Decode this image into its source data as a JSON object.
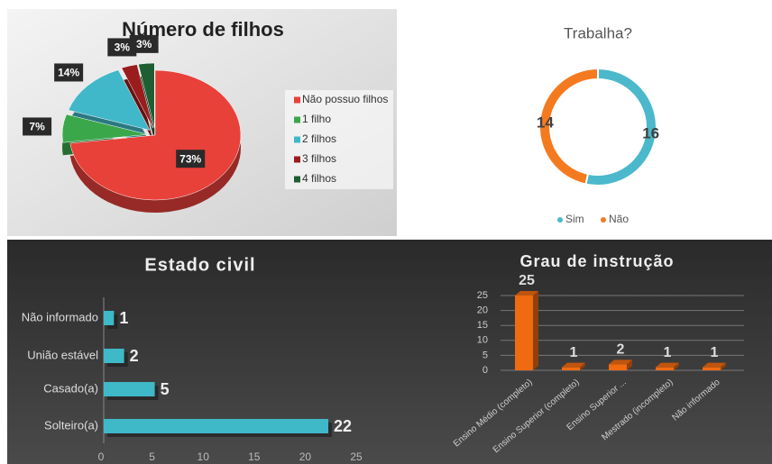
{
  "chart_data": [
    {
      "type": "pie",
      "title": "Número de filhos",
      "categories": [
        "Não possuo filhos",
        "1 filho",
        "2 filhos",
        "3 filhos",
        "4 filhos"
      ],
      "values": [
        73,
        7,
        14,
        3,
        3
      ],
      "value_labels": [
        "73%",
        "7%",
        "14%",
        "3%",
        "3%"
      ],
      "colors": [
        "#e8413a",
        "#3aa84a",
        "#41b8c9",
        "#9b1c1c",
        "#1e5e32"
      ],
      "legend": "right"
    },
    {
      "type": "donut",
      "title": "Trabalha?",
      "categories": [
        "Sim",
        "Não"
      ],
      "values": [
        16,
        14
      ],
      "colors": [
        "#4bb8cc",
        "#f47a20"
      ],
      "legend": "bottom"
    },
    {
      "type": "bar",
      "orientation": "horizontal",
      "title": "Estado civil",
      "categories": [
        "Não informado",
        "União estável",
        "Casado(a)",
        "Solteiro(a)"
      ],
      "values": [
        1,
        2,
        5,
        22
      ],
      "color": "#3fb8c8",
      "xlim": [
        0,
        25
      ],
      "xticks": [
        0,
        5,
        10,
        15,
        20,
        25
      ],
      "grid": false
    },
    {
      "type": "bar",
      "orientation": "vertical",
      "title": "Grau de instrução",
      "categories": [
        "Ensino Médio (completo)",
        "Ensino Superior (completo)",
        "Ensino Superior ...",
        "Mestrado (incompleto)",
        "Não informado"
      ],
      "values": [
        25,
        1,
        2,
        1,
        1
      ],
      "color": "#f06a10",
      "ylim": [
        0,
        25
      ],
      "yticks": [
        0,
        5,
        10,
        15,
        20,
        25
      ],
      "grid": true
    }
  ]
}
